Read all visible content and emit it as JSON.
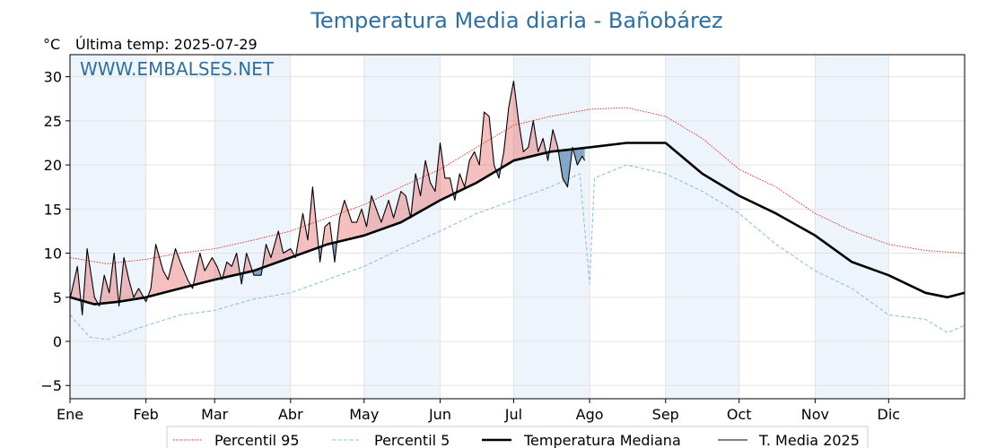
{
  "header": {
    "title": "Temperatura Media diaria - Bañobárez",
    "unit": "°C",
    "last_temp": "Última temp: 2025-07-29",
    "watermark": "WWW.EMBALSES.NET"
  },
  "colors": {
    "title": "#2e6fa3",
    "watermark": "#2e6fa3",
    "p95": "#e8241a",
    "p5": "#8fc3d8",
    "median": "#000000",
    "current": "#000000",
    "fill_above": "#e55454",
    "fill_below": "#5a87b3",
    "month_band": "#eef4fb"
  },
  "chart_data": {
    "type": "line",
    "title": "Temperatura Media diaria - Bañobárez",
    "ylabel": "°C",
    "ylim": [
      -6.5,
      32.5
    ],
    "yticks": [
      -5,
      0,
      5,
      10,
      15,
      20,
      25,
      30
    ],
    "xlim_days": [
      0,
      365
    ],
    "months": [
      {
        "label": "Ene",
        "day": 0
      },
      {
        "label": "Feb",
        "day": 31
      },
      {
        "label": "Mar",
        "day": 59
      },
      {
        "label": "Abr",
        "day": 90
      },
      {
        "label": "May",
        "day": 120
      },
      {
        "label": "Jun",
        "day": 151
      },
      {
        "label": "Jul",
        "day": 181
      },
      {
        "label": "Ago",
        "day": 212
      },
      {
        "label": "Sep",
        "day": 243
      },
      {
        "label": "Oct",
        "day": 273
      },
      {
        "label": "Nov",
        "day": 304
      },
      {
        "label": "Dic",
        "day": 334
      }
    ],
    "grid": true,
    "legend_position": "bottom",
    "series": [
      {
        "name": "Percentil 95",
        "style": "dotted-red",
        "days": [
          0,
          15,
          31,
          45,
          59,
          75,
          90,
          105,
          120,
          135,
          151,
          166,
          181,
          196,
          212,
          227,
          243,
          258,
          273,
          288,
          304,
          319,
          334,
          349,
          365
        ],
        "values": [
          9.5,
          8.8,
          9.3,
          10.0,
          10.5,
          11.5,
          12.5,
          14.0,
          15.5,
          17.5,
          19.5,
          22.0,
          24.5,
          25.5,
          26.3,
          26.5,
          25.5,
          23.0,
          19.5,
          17.5,
          14.5,
          12.5,
          11.0,
          10.3,
          10.0
        ]
      },
      {
        "name": "Percentil 5",
        "style": "dashed-lightblue",
        "days": [
          0,
          8,
          15,
          31,
          45,
          59,
          75,
          90,
          105,
          120,
          135,
          151,
          166,
          181,
          196,
          208,
          212,
          214,
          227,
          243,
          258,
          273,
          288,
          304,
          319,
          334,
          349,
          358,
          365
        ],
        "values": [
          3.0,
          0.5,
          0.2,
          1.8,
          3.0,
          3.5,
          4.8,
          5.5,
          7.0,
          8.5,
          10.5,
          12.5,
          14.5,
          16.0,
          17.5,
          19.0,
          6.5,
          18.5,
          20.0,
          19.0,
          17.0,
          14.5,
          11.0,
          8.0,
          6.0,
          3.0,
          2.5,
          1.0,
          1.8
        ]
      },
      {
        "name": "Temperatura Mediana",
        "style": "solid-black-thick",
        "days": [
          0,
          10,
          20,
          31,
          45,
          59,
          75,
          90,
          105,
          120,
          135,
          151,
          166,
          181,
          196,
          212,
          227,
          243,
          258,
          273,
          288,
          304,
          319,
          334,
          349,
          358,
          365
        ],
        "values": [
          5.0,
          4.2,
          4.5,
          5.0,
          6.0,
          7.0,
          8.0,
          9.5,
          11.0,
          12.0,
          13.5,
          16.0,
          18.0,
          20.5,
          21.5,
          22.0,
          22.5,
          22.5,
          19.0,
          16.5,
          14.5,
          12.0,
          9.0,
          7.5,
          5.5,
          5.0,
          5.5
        ]
      },
      {
        "name": "T. Media 2025",
        "style": "solid-black-thin",
        "days": [
          0,
          3,
          5,
          7,
          10,
          12,
          14,
          16,
          18,
          20,
          22,
          24,
          26,
          28,
          31,
          33,
          35,
          38,
          40,
          43,
          45,
          48,
          50,
          53,
          55,
          58,
          60,
          62,
          64,
          66,
          68,
          70,
          72,
          75,
          78,
          80,
          82,
          85,
          87,
          90,
          92,
          95,
          97,
          99,
          102,
          104,
          106,
          108,
          110,
          112,
          115,
          117,
          119,
          121,
          123,
          125,
          127,
          130,
          132,
          135,
          137,
          139,
          141,
          143,
          145,
          147,
          149,
          151,
          153,
          155,
          157,
          159,
          161,
          163,
          165,
          167,
          169,
          171,
          173,
          175,
          177,
          179,
          181,
          183,
          185,
          187,
          189,
          191,
          193,
          195,
          197,
          199,
          201,
          203,
          205,
          207,
          209,
          210
        ],
        "values": [
          4.8,
          8.5,
          3.0,
          10.5,
          5.0,
          4.0,
          7.5,
          5.5,
          10.0,
          4.0,
          9.5,
          7.0,
          5.0,
          6.0,
          4.5,
          6.0,
          11.0,
          8.0,
          7.0,
          10.5,
          9.0,
          7.0,
          6.0,
          10.0,
          8.0,
          9.5,
          8.5,
          7.0,
          9.0,
          8.5,
          10.0,
          6.5,
          10.0,
          7.5,
          7.5,
          11.0,
          9.5,
          12.5,
          10.0,
          10.5,
          9.5,
          14.5,
          11.5,
          17.5,
          9.0,
          13.0,
          13.5,
          9.0,
          14.0,
          16.0,
          13.5,
          13.5,
          15.0,
          13.0,
          16.5,
          15.0,
          13.5,
          16.0,
          14.0,
          17.0,
          16.5,
          14.0,
          19.0,
          16.5,
          20.5,
          18.0,
          17.0,
          22.5,
          18.5,
          18.5,
          16.0,
          19.0,
          17.5,
          20.5,
          21.5,
          20.0,
          26.0,
          25.5,
          20.0,
          18.5,
          21.5,
          26.5,
          29.5,
          25.0,
          21.5,
          22.0,
          25.0,
          21.5,
          23.0,
          20.5,
          24.0,
          22.0,
          18.5,
          17.5,
          22.0,
          20.0,
          21.0,
          20.5
        ]
      }
    ]
  },
  "legend": [
    {
      "label": "Percentil 95",
      "style": "dotted-red"
    },
    {
      "label": "Percentil 5",
      "style": "dashed-lightblue"
    },
    {
      "label": "Temperatura Mediana",
      "style": "solid-black-thick"
    },
    {
      "label": "T. Media 2025",
      "style": "solid-black-thin"
    }
  ]
}
